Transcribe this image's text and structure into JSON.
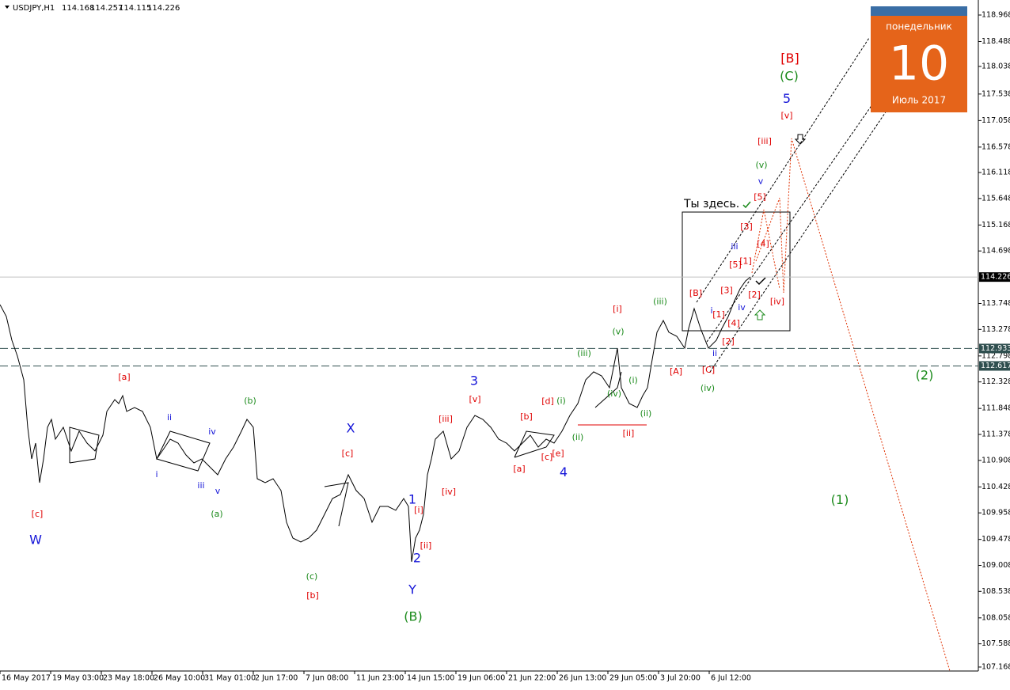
{
  "chart_data": {
    "type": "line",
    "symbol": "USDJPY,H1",
    "ohlc": [
      114.168,
      114.257,
      114.115,
      114.226
    ],
    "xlim": [
      0,
      1236
    ],
    "ylim": [
      107.096,
      119.24
    ],
    "xticks": [
      {
        "value": 0,
        "label": "16 May 2017"
      },
      {
        "value": 64,
        "label": "19 May 03:00"
      },
      {
        "value": 128,
        "label": "23 May 18:00"
      },
      {
        "value": 192,
        "label": "26 May 10:00"
      },
      {
        "value": 256,
        "label": "31 May 01:00"
      },
      {
        "value": 320,
        "label": "2 Jun 17:00"
      },
      {
        "value": 384,
        "label": "7 Jun 08:00"
      },
      {
        "value": 448,
        "label": "11 Jun 23:00"
      },
      {
        "value": 512,
        "label": "14 Jun 15:00"
      },
      {
        "value": 576,
        "label": "19 Jun 06:00"
      },
      {
        "value": 640,
        "label": "21 Jun 22:00"
      },
      {
        "value": 704,
        "label": "26 Jun 13:00"
      },
      {
        "value": 768,
        "label": "29 Jun 05:00"
      },
      {
        "value": 832,
        "label": "3 Jul 20:00"
      },
      {
        "value": 896,
        "label": "6 Jul 12:00"
      }
    ],
    "yticks": [
      118.968,
      118.488,
      118.038,
      117.538,
      117.058,
      116.578,
      116.118,
      115.648,
      115.168,
      114.698,
      113.748,
      113.278,
      112.798,
      112.328,
      111.848,
      111.378,
      110.908,
      110.428,
      109.958,
      109.478,
      109.008,
      108.538,
      108.058,
      107.588,
      107.168
    ],
    "color": "#000000",
    "x": [
      0,
      8,
      15,
      22,
      30,
      35,
      40,
      45,
      50,
      55,
      60,
      65,
      70,
      80,
      90,
      100,
      110,
      120,
      130,
      135,
      145,
      150,
      155,
      160,
      170,
      180,
      190,
      198,
      205,
      215,
      225,
      235,
      245,
      255,
      265,
      275,
      285,
      295,
      305,
      312,
      320,
      325,
      335,
      345,
      355,
      362,
      370,
      380,
      390,
      400,
      410,
      420,
      430,
      440,
      450,
      460,
      470,
      480,
      490,
      500,
      510,
      516,
      520,
      525,
      530,
      535,
      540,
      545,
      550,
      560,
      570,
      580,
      590,
      600,
      610,
      620,
      630,
      640,
      650,
      660,
      670,
      680,
      690,
      700,
      710,
      720,
      730,
      740,
      750,
      760,
      770,
      780,
      785,
      795,
      805,
      812,
      818,
      823,
      830,
      838,
      845,
      855,
      865,
      870,
      877,
      885,
      895,
      905,
      912,
      920,
      928,
      935,
      942,
      948
    ],
    "values": [
      113.727,
      113.512,
      113.082,
      112.796,
      112.366,
      111.507,
      110.934,
      111.221,
      110.505,
      110.934,
      111.507,
      111.65,
      111.292,
      111.507,
      111.078,
      111.436,
      111.221,
      111.078,
      111.364,
      111.794,
      112.008,
      111.937,
      112.08,
      111.794,
      111.865,
      111.794,
      111.507,
      110.934,
      111.078,
      111.292,
      111.221,
      111.006,
      110.863,
      110.934,
      110.791,
      110.648,
      110.934,
      111.149,
      111.436,
      111.65,
      111.507,
      110.576,
      110.505,
      110.576,
      110.362,
      109.789,
      109.502,
      109.431,
      109.502,
      109.646,
      109.932,
      110.218,
      110.29,
      110.648,
      110.362,
      110.218,
      109.789,
      110.075,
      110.075,
      110.004,
      110.218,
      110.075,
      109.073,
      109.502,
      109.646,
      109.932,
      110.648,
      110.934,
      111.292,
      111.436,
      110.934,
      111.078,
      111.507,
      111.722,
      111.65,
      111.507,
      111.292,
      111.221,
      111.078,
      111.221,
      111.364,
      111.149,
      111.292,
      111.221,
      111.436,
      111.722,
      111.937,
      112.366,
      112.51,
      112.438,
      112.223,
      112.939,
      112.223,
      111.937,
      111.865,
      112.08,
      112.223,
      112.653,
      113.226,
      113.44,
      113.226,
      113.154,
      112.939,
      113.297,
      113.655,
      113.297,
      112.939,
      113.082,
      113.297,
      113.512,
      113.798,
      114.013,
      114.156,
      114.226
    ],
    "price_line": 114.226,
    "levels": [
      112.933,
      112.617
    ],
    "annotations": [
      {
        "color": "#e00000",
        "style": "minor",
        "labels": [
          {
            "text": "[c]",
            "x": 47,
            "y": 109.93
          },
          {
            "text": "[a]",
            "x": 157,
            "y": 112.41
          },
          {
            "text": "[c]",
            "x": 439,
            "y": 111.03
          },
          {
            "text": "[b]",
            "x": 395,
            "y": 108.46
          },
          {
            "text": "[i]",
            "x": 529,
            "y": 110.0
          },
          {
            "text": "[ii]",
            "x": 538,
            "y": 109.36
          },
          {
            "text": "[iii]",
            "x": 563,
            "y": 111.65
          },
          {
            "text": "[iv]",
            "x": 567,
            "y": 110.33
          },
          {
            "text": "[v]",
            "x": 600,
            "y": 112.01
          },
          {
            "text": "[a]",
            "x": 656,
            "y": 110.75
          },
          {
            "text": "[b]",
            "x": 665,
            "y": 111.69
          },
          {
            "text": "[c]",
            "x": 691,
            "y": 110.96
          },
          {
            "text": "[d]",
            "x": 692,
            "y": 111.97
          },
          {
            "text": "[e]",
            "x": 705,
            "y": 111.03
          },
          {
            "text": "[i]",
            "x": 780,
            "y": 113.64
          },
          {
            "text": "[ii]",
            "x": 794,
            "y": 111.39
          },
          {
            "text": "[A]",
            "x": 854,
            "y": 112.51
          },
          {
            "text": "[B]",
            "x": 879,
            "y": 113.93
          },
          {
            "text": "[C]",
            "x": 895,
            "y": 112.54
          },
          {
            "text": "[1]",
            "x": 908,
            "y": 113.54
          },
          {
            "text": "[2]",
            "x": 920,
            "y": 113.05
          },
          {
            "text": "[3]",
            "x": 918,
            "y": 113.98
          },
          {
            "text": "[4]",
            "x": 927,
            "y": 113.38
          },
          {
            "text": "[5]",
            "x": 929,
            "y": 114.44
          },
          {
            "text": "[1]",
            "x": 942,
            "y": 114.51
          },
          {
            "text": "[2]",
            "x": 953,
            "y": 113.9
          },
          {
            "text": "[3]",
            "x": 943,
            "y": 115.13
          },
          {
            "text": "[4]",
            "x": 964,
            "y": 114.82
          },
          {
            "text": "[5]",
            "x": 960,
            "y": 115.67
          },
          {
            "text": "[iii]",
            "x": 966,
            "y": 116.68
          },
          {
            "text": "[iv]",
            "x": 982,
            "y": 113.78
          },
          {
            "text": "[v]",
            "x": 994,
            "y": 117.14
          }
        ]
      },
      {
        "color": "#e00000",
        "style": "major",
        "labels": [
          {
            "text": "[B]",
            "x": 998,
            "y": 118.17
          }
        ]
      },
      {
        "color": "#1a8a1a",
        "style": "minor",
        "labels": [
          {
            "text": "(a)",
            "x": 274,
            "y": 109.93
          },
          {
            "text": "(b)",
            "x": 316,
            "y": 111.98
          },
          {
            "text": "(c)",
            "x": 394,
            "y": 108.8
          },
          {
            "text": "(i)",
            "x": 709,
            "y": 111.98
          },
          {
            "text": "(ii)",
            "x": 730,
            "y": 111.32
          },
          {
            "text": "(iii)",
            "x": 738,
            "y": 112.84
          },
          {
            "text": "(iv)",
            "x": 776,
            "y": 112.11
          },
          {
            "text": "(v)",
            "x": 781,
            "y": 113.23
          },
          {
            "text": "(i)",
            "x": 800,
            "y": 112.35
          },
          {
            "text": "(ii)",
            "x": 816,
            "y": 111.75
          },
          {
            "text": "(iii)",
            "x": 834,
            "y": 113.78
          },
          {
            "text": "(iv)",
            "x": 894,
            "y": 112.21
          },
          {
            "text": "(v)",
            "x": 962,
            "y": 116.25
          }
        ]
      },
      {
        "color": "#1a8a1a",
        "style": "major",
        "labels": [
          {
            "text": "(B)",
            "x": 522,
            "y": 108.07
          },
          {
            "text": "(C)",
            "x": 997,
            "y": 117.85
          },
          {
            "text": "(1)",
            "x": 1061,
            "y": 110.18
          },
          {
            "text": "(2)",
            "x": 1168,
            "y": 112.44
          }
        ]
      },
      {
        "color": "#1515d8",
        "style": "minor",
        "labels": [
          {
            "text": "ii",
            "x": 214,
            "y": 111.68
          },
          {
            "text": "i",
            "x": 198,
            "y": 110.65
          },
          {
            "text": "iii",
            "x": 254,
            "y": 110.45
          },
          {
            "text": "iv",
            "x": 268,
            "y": 111.42
          },
          {
            "text": "v",
            "x": 275,
            "y": 110.35
          },
          {
            "text": "i",
            "x": 899,
            "y": 113.61
          },
          {
            "text": "ii",
            "x": 903,
            "y": 112.84
          },
          {
            "text": "iii",
            "x": 928,
            "y": 114.77
          },
          {
            "text": "iv",
            "x": 937,
            "y": 113.67
          },
          {
            "text": "v",
            "x": 961,
            "y": 115.95
          }
        ]
      },
      {
        "color": "#1515d8",
        "style": "major",
        "labels": [
          {
            "text": "W",
            "x": 45,
            "y": 109.46
          },
          {
            "text": "X",
            "x": 443,
            "y": 111.48
          },
          {
            "text": "1",
            "x": 521,
            "y": 110.19
          },
          {
            "text": "2",
            "x": 527,
            "y": 109.13
          },
          {
            "text": "Y",
            "x": 521,
            "y": 108.56
          },
          {
            "text": "3",
            "x": 599,
            "y": 112.34
          },
          {
            "text": "4",
            "x": 712,
            "y": 110.68
          },
          {
            "text": "5",
            "x": 994,
            "y": 117.44
          }
        ]
      }
    ],
    "note": "Ты здесь."
  },
  "calendar": {
    "weekday": "понедельник",
    "day": "10",
    "month": "Июль 2017"
  }
}
